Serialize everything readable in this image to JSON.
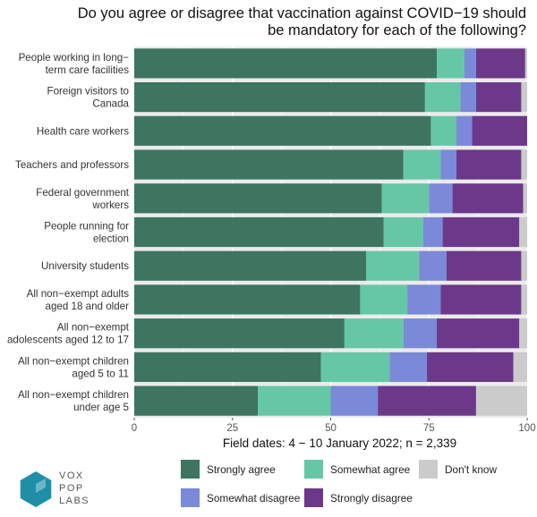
{
  "chart_data": {
    "type": "bar",
    "orientation": "horizontal",
    "stacked": true,
    "title_lines": [
      "Do you agree or disagree that vaccination against COVID−19 should",
      "be mandatory for each of the following?"
    ],
    "xlabel": "Field dates: 4 − 10 January 2022; n = 2,339",
    "xlim": [
      0,
      100
    ],
    "xticks": [
      "0",
      "25",
      "50",
      "75",
      "100"
    ],
    "grid": true,
    "legend_position": "bottom",
    "categories": [
      [
        "People working in long−",
        "term care facilities"
      ],
      [
        "Foreign visitors to",
        "Canada"
      ],
      [
        "Health care workers"
      ],
      [
        "Teachers and professors"
      ],
      [
        "Federal government",
        "workers"
      ],
      [
        "People running for",
        "election"
      ],
      [
        "University students"
      ],
      [
        "All non−exempt adults",
        "aged 18 and older"
      ],
      [
        "All non−exempt",
        "adolescents aged 12 to 17"
      ],
      [
        "All non−exempt children",
        "aged 5 to 11"
      ],
      [
        "All non−exempt children",
        "under age 5"
      ]
    ],
    "series": [
      {
        "name": "Strongly agree",
        "color": "#3d7560",
        "values": [
          77,
          74,
          75.5,
          68.5,
          63,
          63.5,
          59,
          57.5,
          53.5,
          47.5,
          31.5
        ]
      },
      {
        "name": "Somewhat agree",
        "color": "#66c7a6",
        "values": [
          7,
          9,
          6.5,
          9.5,
          12,
          10,
          13.5,
          12,
          15,
          17.5,
          18.5
        ]
      },
      {
        "name": "Somewhat disagree",
        "color": "#7a89d8",
        "values": [
          3,
          4,
          4,
          4,
          6,
          5,
          7,
          8.5,
          8.5,
          9.5,
          12
        ]
      },
      {
        "name": "Strongly disagree",
        "color": "#6c3889",
        "values": [
          12.5,
          11.5,
          14,
          16.5,
          18,
          19.5,
          19,
          20.5,
          21,
          22,
          25
        ]
      },
      {
        "name": "Don't know",
        "color": "#cbcbcb",
        "values": [
          0.5,
          1.5,
          0,
          1.5,
          1,
          2,
          1.5,
          1.5,
          2,
          3.5,
          13
        ]
      }
    ],
    "legend_order": [
      "Strongly agree",
      "Somewhat agree",
      "Don't know",
      "Somewhat disagree",
      "Strongly disagree"
    ]
  },
  "logo": {
    "lines": [
      "VOX",
      "POP",
      "LABS"
    ],
    "color": "#1f8fa8"
  }
}
